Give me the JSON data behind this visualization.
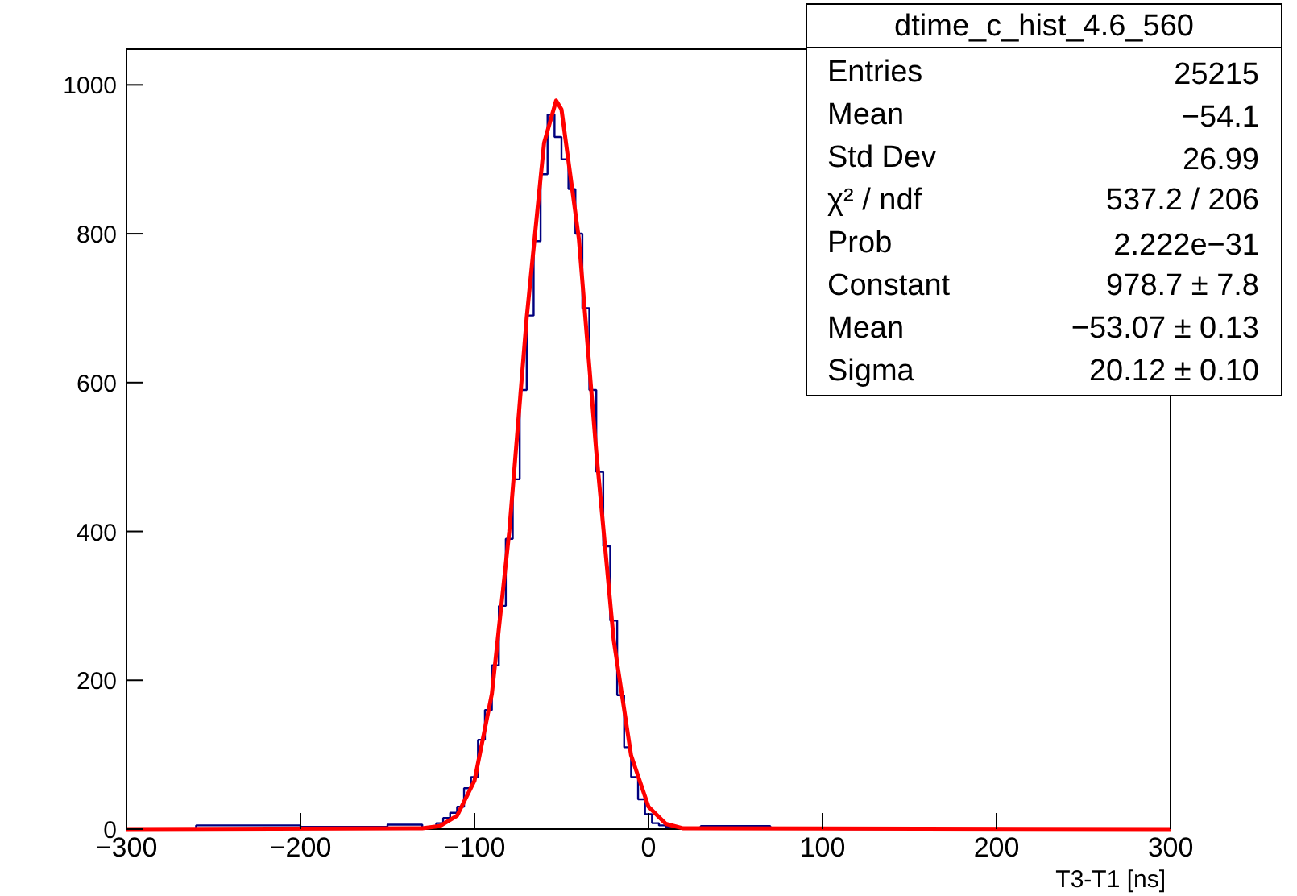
{
  "chart_data": {
    "type": "histogram",
    "xlabel": "T3-T1 [ns]",
    "bins": [
      -300,
      -260,
      -200,
      -150,
      -130,
      -126,
      -122,
      -118,
      -114,
      -110,
      -106,
      -102,
      -98,
      -94,
      -90,
      -86,
      -82,
      -78,
      -74,
      -70,
      -66,
      -62,
      -58,
      -54,
      -50,
      -46,
      -42,
      -38,
      -34,
      -30,
      -26,
      -22,
      -18,
      -14,
      -10,
      -6,
      -2,
      2,
      6,
      10,
      14,
      18,
      22,
      26,
      30,
      70,
      110,
      300
    ],
    "values": [
      0,
      5,
      3,
      6,
      2,
      3,
      8,
      15,
      22,
      30,
      55,
      70,
      120,
      160,
      220,
      300,
      390,
      470,
      590,
      690,
      790,
      880,
      960,
      930,
      900,
      860,
      800,
      700,
      590,
      480,
      380,
      280,
      180,
      110,
      70,
      40,
      20,
      8,
      5,
      3,
      3,
      2,
      2,
      1,
      4,
      1,
      0
    ],
    "color": "#00007f",
    "series": [
      {
        "type": "line",
        "color": "#ff0000",
        "x": [
          -300,
          -130,
          -120,
          -110,
          -100,
          -90,
          -80,
          -70,
          -60,
          -53.07,
          -50,
          -40,
          -30,
          -20,
          -10,
          0,
          10,
          20,
          300
        ],
        "values": [
          0,
          1,
          4,
          18,
          65,
          182,
          400,
          687,
          922,
          979,
          967,
          793,
          507,
          254,
          99,
          30,
          7,
          1,
          0
        ]
      }
    ],
    "xlim": [
      -300,
      300
    ],
    "ylim": [
      0,
      1048
    ],
    "xticks": [
      -300,
      -200,
      -100,
      0,
      100,
      200,
      300
    ],
    "yticks": [
      0,
      200,
      400,
      600,
      800,
      1000
    ],
    "annotations": [
      "dtime_c_hist_4.6_560",
      "Entries",
      "25215",
      "Mean",
      "−54.1",
      "Std Dev",
      "26.99",
      "χ² / ndf",
      "537.2 / 206",
      "Prob",
      "2.222e−31",
      "Constant",
      "978.7 ± 7.8",
      "Mean",
      "−53.07 ± 0.13",
      "Sigma",
      "20.12 ± 0.10"
    ]
  }
}
